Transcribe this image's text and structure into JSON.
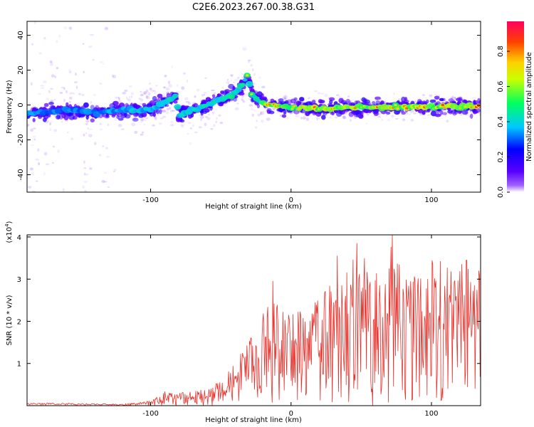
{
  "chart_data": [
    {
      "type": "heatmap",
      "title": "C2E6.2023.267.00.38.G31",
      "xlabel": "Height of straight line (km)",
      "ylabel": "Frequency (Hz)",
      "xlim": [
        -188,
        135
      ],
      "ylim": [
        -50,
        48
      ],
      "xticks": [
        -100,
        0,
        100
      ],
      "xtick_labels": [
        "-100",
        "0",
        "100"
      ],
      "yticks": [
        -40,
        -20,
        0,
        20,
        40
      ],
      "ytick_labels": [
        "-40",
        "-20",
        "0",
        "20",
        "40"
      ],
      "colorbar": {
        "label": "Normalized spectral amplitude",
        "range": [
          0.0,
          0.97
        ],
        "ticks": [
          0.0,
          0.2,
          0.4,
          0.6,
          0.8
        ],
        "tick_labels": [
          "0.0",
          "0.2",
          "0.4",
          "0.6",
          "0.8"
        ],
        "colormap": [
          "#5a00ff",
          "#0000ff",
          "#00c8ff",
          "#00ff60",
          "#c8ff00",
          "#ffd000",
          "#ff4000",
          "#ff0060"
        ]
      },
      "ridge": {
        "x": [
          -188,
          -160,
          -140,
          -120,
          -105,
          -95,
          -88,
          -82,
          -80,
          -75,
          -65,
          -55,
          -45,
          -38,
          -33,
          -31,
          -28,
          -22,
          -15,
          0,
          20,
          50,
          80,
          110,
          135
        ],
        "y": [
          -5,
          -3,
          -4,
          -3,
          -3,
          -1,
          3,
          5,
          -6,
          -4,
          -2,
          2,
          5,
          8,
          14,
          17,
          6,
          2,
          0,
          -1,
          -2,
          -1,
          -1,
          -1,
          -1
        ],
        "amplitude": [
          0.35,
          0.35,
          0.35,
          0.4,
          0.45,
          0.45,
          0.5,
          0.45,
          0.5,
          0.45,
          0.5,
          0.5,
          0.55,
          0.55,
          0.5,
          0.6,
          0.55,
          0.6,
          0.8,
          0.7,
          0.8,
          0.75,
          0.75,
          0.8,
          0.85
        ]
      },
      "grid": false
    },
    {
      "type": "line",
      "xlabel": "Height of straight line (km)",
      "ylabel": "SNR (10 * v/v)",
      "yscale_label": "(x10^4)",
      "xlim": [
        -188,
        135
      ],
      "ylim": [
        0,
        4.05
      ],
      "xticks": [
        -100,
        0,
        100
      ],
      "xtick_labels": [
        "-100",
        "0",
        "100"
      ],
      "yticks": [
        1,
        2,
        3,
        4
      ],
      "ytick_labels": [
        "1",
        "2",
        "3",
        "4"
      ],
      "color": "#e8302a",
      "envelope": {
        "x": [
          -188,
          -150,
          -120,
          -100,
          -90,
          -80,
          -60,
          -40,
          -30,
          -20,
          -10,
          0,
          10,
          20,
          30,
          40,
          50,
          60,
          70,
          80,
          90,
          100,
          110,
          120,
          135
        ],
        "y": [
          0.1,
          0.07,
          0.05,
          0.12,
          0.35,
          0.3,
          0.4,
          1.0,
          1.7,
          2.3,
          2.7,
          2.2,
          2.5,
          2.6,
          3.0,
          3.6,
          3.8,
          3.2,
          4.0,
          3.3,
          3.0,
          3.5,
          3.4,
          3.4,
          3.2
        ]
      },
      "annotated_peaks": [
        {
          "x": -13,
          "y": 2.95
        },
        {
          "x": 33,
          "y": 3.55
        },
        {
          "x": 47,
          "y": 3.85
        },
        {
          "x": 72,
          "y": 4.05
        },
        {
          "x": 101,
          "y": 3.35
        },
        {
          "x": 125,
          "y": 3.45
        }
      ],
      "grid": false
    }
  ]
}
